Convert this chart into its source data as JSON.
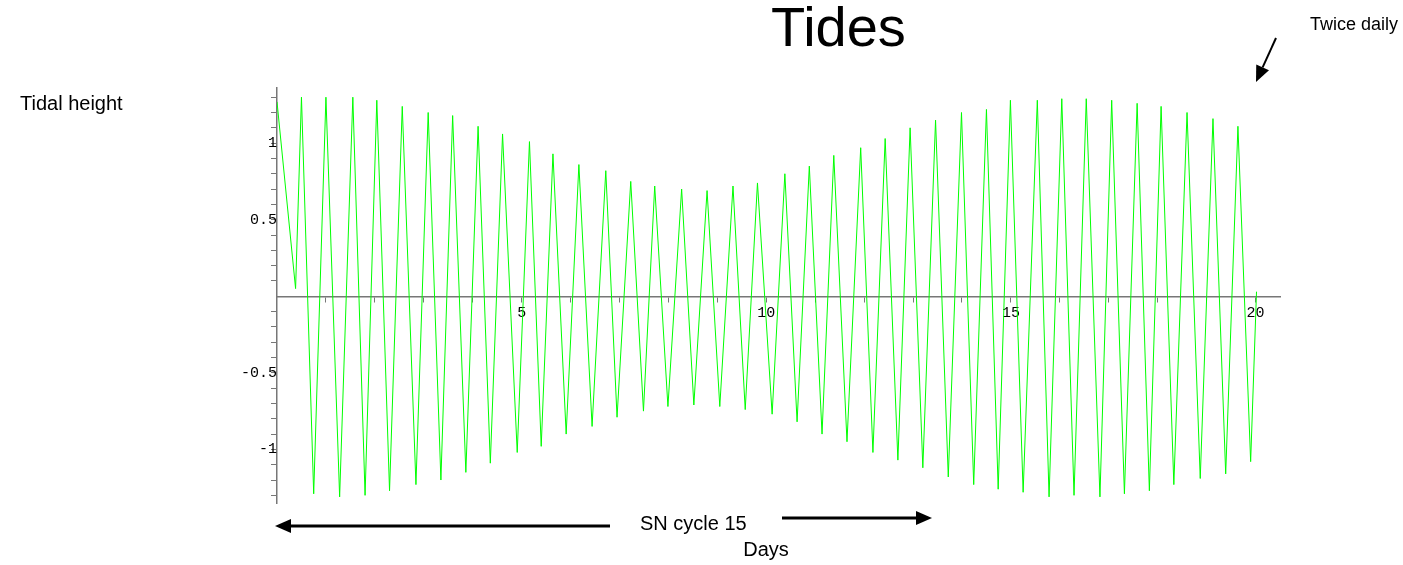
{
  "chart_data": {
    "type": "line",
    "title": "Tides",
    "xlabel": "Days",
    "annotations": [
      "Tidal height",
      "SN cycle 15",
      "Twice daily"
    ],
    "series": [
      {
        "color": "#00ff00",
        "x": [
          0,
          0.38,
          0.5,
          0.75,
          1.0,
          1.28,
          1.55,
          1.8,
          2.04,
          2.3,
          2.56,
          2.84,
          3.09,
          3.35,
          3.59,
          3.86,
          4.11,
          4.36,
          4.61,
          4.91,
          5.16,
          5.4,
          5.64,
          5.91,
          6.17,
          6.44,
          6.72,
          6.95,
          7.23,
          7.49,
          7.72,
          7.99,
          8.27,
          8.52,
          8.79,
          9.05,
          9.32,
          9.57,
          9.82,
          10.12,
          10.38,
          10.63,
          10.88,
          11.14,
          11.38,
          11.65,
          11.93,
          12.18,
          12.43,
          12.69,
          12.94,
          13.2,
          13.46,
          13.72,
          13.99,
          14.24,
          14.5,
          14.74,
          14.99,
          15.25,
          15.54,
          15.78,
          16.04,
          16.29,
          16.54,
          16.82,
          17.06,
          17.32,
          17.58,
          17.83,
          18.07,
          18.33,
          18.6,
          18.87,
          19.13,
          19.39,
          19.64,
          19.9,
          20.02
        ],
        "values": [
          1.27,
          0.05,
          1.3,
          -1.29,
          1.3,
          -1.31,
          1.3,
          -1.3,
          1.28,
          -1.27,
          1.24,
          -1.23,
          1.2,
          -1.2,
          1.18,
          -1.15,
          1.11,
          -1.09,
          1.06,
          -1.02,
          1.01,
          -0.98,
          0.93,
          -0.9,
          0.86,
          -0.85,
          0.82,
          -0.79,
          0.75,
          -0.75,
          0.72,
          -0.72,
          0.7,
          -0.71,
          0.69,
          -0.72,
          0.72,
          -0.74,
          0.74,
          -0.77,
          0.8,
          -0.82,
          0.85,
          -0.9,
          0.92,
          -0.95,
          0.97,
          -1.02,
          1.03,
          -1.07,
          1.1,
          -1.12,
          1.15,
          -1.18,
          1.2,
          -1.23,
          1.22,
          -1.26,
          1.28,
          -1.28,
          1.28,
          -1.31,
          1.29,
          -1.3,
          1.29,
          -1.31,
          1.28,
          -1.29,
          1.26,
          -1.27,
          1.24,
          -1.23,
          1.2,
          -1.19,
          1.16,
          -1.16,
          1.11,
          -1.08,
          0.03
        ]
      }
    ],
    "xlim": [
      0,
      20.5
    ],
    "ylim": [
      -1.35,
      1.36
    ],
    "xticks": [
      {
        "value": 1,
        "label": null
      },
      {
        "value": 2,
        "label": null
      },
      {
        "value": 3,
        "label": null
      },
      {
        "value": 4,
        "label": null
      },
      5,
      {
        "value": 6,
        "label": null
      },
      {
        "value": 7,
        "label": null
      },
      {
        "value": 8,
        "label": null
      },
      {
        "value": 9,
        "label": null
      },
      10,
      {
        "value": 11,
        "label": null
      },
      {
        "value": 12,
        "label": null
      },
      {
        "value": 13,
        "label": null
      },
      {
        "value": 14,
        "label": null
      },
      15,
      {
        "value": 16,
        "label": null
      },
      {
        "value": 17,
        "label": null
      },
      {
        "value": 18,
        "label": null
      },
      {
        "value": 19,
        "label": null
      },
      20
    ],
    "yticks": [
      {
        "value": -1.3,
        "label": null
      },
      {
        "value": -1.2,
        "label": null
      },
      {
        "value": -1.1,
        "label": null
      },
      -1,
      {
        "value": -0.9,
        "label": null
      },
      {
        "value": -0.8,
        "label": null
      },
      {
        "value": -0.7,
        "label": null
      },
      {
        "value": -0.6,
        "label": null
      },
      -0.5,
      {
        "value": -0.4,
        "label": null
      },
      {
        "value": -0.3,
        "label": null
      },
      {
        "value": -0.2,
        "label": null
      },
      {
        "value": -0.1,
        "label": null
      },
      {
        "value": 0.1,
        "label": null
      },
      {
        "value": 0.2,
        "label": null
      },
      {
        "value": 0.3,
        "label": null
      },
      {
        "value": 0.4,
        "label": null
      },
      0.5,
      {
        "value": 0.6,
        "label": null
      },
      {
        "value": 0.7,
        "label": null
      },
      {
        "value": 0.8,
        "label": null
      },
      {
        "value": 0.9,
        "label": null
      },
      1,
      {
        "value": 1.1,
        "label": null
      },
      {
        "value": 1.2,
        "label": null
      },
      {
        "value": 1.3,
        "label": null
      }
    ],
    "grid": false,
    "legend": false,
    "marker": "none",
    "line_style": "solid"
  }
}
